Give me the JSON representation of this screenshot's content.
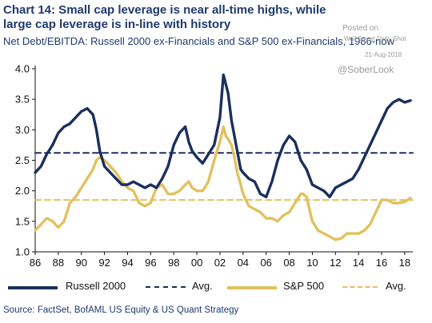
{
  "header": {
    "title": "Chart 14: Small cap leverage is near all-time highs, while large cap leverage is in-line with history",
    "subtitle": "Net Debt/EBITDA: Russell 2000 ex-Financials and S&P 500 ex-Financials, 1986-now"
  },
  "watermark": {
    "posted": "Posted on",
    "site": "Wall Street Daily Shot",
    "date": "21-Aug-2018",
    "handle": "@SoberLook"
  },
  "source": "Source: FactSet, BofAML US Equity & US Quant Strategy",
  "colors": {
    "russell": "#1b2f5e",
    "sp500": "#e2c15e",
    "axis": "#111111"
  },
  "chart_data": {
    "type": "line",
    "xlabel": "",
    "ylabel": "",
    "xlim": [
      1986,
      2018.7
    ],
    "ylim": [
      1.0,
      4.0
    ],
    "x_ticks": [
      "86",
      "88",
      "90",
      "92",
      "94",
      "96",
      "98",
      "00",
      "02",
      "04",
      "06",
      "08",
      "10",
      "12",
      "14",
      "16",
      "18"
    ],
    "y_ticks": [
      "1.0",
      "1.5",
      "2.0",
      "2.5",
      "3.0",
      "3.5",
      "4.0"
    ],
    "legend_position": "bottom",
    "series": [
      {
        "name": "Russell 2000",
        "color": "#1b2f5e",
        "style": "solid",
        "x": [
          1986.0,
          1986.5,
          1987.0,
          1987.5,
          1988.0,
          1988.5,
          1989.0,
          1989.5,
          1990.0,
          1990.5,
          1991.0,
          1991.3,
          1991.6,
          1992.0,
          1992.5,
          1993.0,
          1993.5,
          1994.0,
          1994.5,
          1995.0,
          1995.5,
          1996.0,
          1996.5,
          1997.0,
          1997.5,
          1998.0,
          1998.5,
          1999.0,
          1999.3,
          1999.6,
          2000.0,
          2000.5,
          2001.0,
          2001.5,
          2002.0,
          2002.3,
          2002.5,
          2002.7,
          2003.0,
          2003.2,
          2003.5,
          2003.8,
          2004.0,
          2004.5,
          2005.0,
          2005.5,
          2006.0,
          2006.5,
          2007.0,
          2007.5,
          2008.0,
          2008.5,
          2009.0,
          2009.5,
          2010.0,
          2010.5,
          2011.0,
          2011.5,
          2012.0,
          2012.5,
          2013.0,
          2013.5,
          2014.0,
          2014.5,
          2015.0,
          2015.5,
          2016.0,
          2016.5,
          2017.0,
          2017.5,
          2018.0,
          2018.5
        ],
        "values": [
          2.3,
          2.4,
          2.6,
          2.75,
          2.95,
          3.05,
          3.1,
          3.2,
          3.3,
          3.35,
          3.25,
          3.0,
          2.65,
          2.4,
          2.3,
          2.2,
          2.1,
          2.1,
          2.15,
          2.1,
          2.05,
          2.1,
          2.05,
          2.2,
          2.4,
          2.75,
          2.95,
          3.05,
          2.8,
          2.65,
          2.55,
          2.45,
          2.6,
          2.75,
          3.2,
          3.9,
          3.75,
          3.6,
          3.15,
          2.95,
          2.65,
          2.35,
          2.3,
          2.2,
          2.15,
          1.95,
          1.9,
          2.15,
          2.5,
          2.75,
          2.9,
          2.8,
          2.5,
          2.35,
          2.1,
          2.05,
          2.0,
          1.9,
          2.05,
          2.1,
          2.15,
          2.2,
          2.35,
          2.55,
          2.75,
          2.95,
          3.15,
          3.35,
          3.45,
          3.5,
          3.45,
          3.48
        ]
      },
      {
        "name": "S&P 500",
        "color": "#e2c15e",
        "style": "solid",
        "x": [
          1986.0,
          1986.5,
          1987.0,
          1987.5,
          1988.0,
          1988.5,
          1989.0,
          1989.5,
          1990.0,
          1990.5,
          1991.0,
          1991.3,
          1991.6,
          1992.0,
          1992.5,
          1993.0,
          1993.5,
          1994.0,
          1994.5,
          1995.0,
          1995.5,
          1996.0,
          1996.5,
          1997.0,
          1997.5,
          1998.0,
          1998.5,
          1999.0,
          1999.3,
          1999.6,
          2000.0,
          2000.5,
          2001.0,
          2001.5,
          2002.0,
          2002.3,
          2002.5,
          2002.7,
          2003.0,
          2003.2,
          2003.5,
          2003.8,
          2004.0,
          2004.5,
          2005.0,
          2005.5,
          2006.0,
          2006.5,
          2007.0,
          2007.5,
          2008.0,
          2008.5,
          2009.0,
          2009.2,
          2009.5,
          2010.0,
          2010.5,
          2011.0,
          2011.5,
          2012.0,
          2012.5,
          2013.0,
          2013.5,
          2014.0,
          2014.5,
          2015.0,
          2015.5,
          2016.0,
          2016.5,
          2017.0,
          2017.5,
          2018.0,
          2018.5
        ],
        "values": [
          1.35,
          1.45,
          1.55,
          1.5,
          1.4,
          1.5,
          1.8,
          1.9,
          2.05,
          2.2,
          2.35,
          2.5,
          2.55,
          2.5,
          2.4,
          2.3,
          2.15,
          2.05,
          2.0,
          1.8,
          1.75,
          1.8,
          2.05,
          2.1,
          1.95,
          1.95,
          2.0,
          2.1,
          2.15,
          2.05,
          2.0,
          2.0,
          2.15,
          2.5,
          2.8,
          3.05,
          2.9,
          2.85,
          2.75,
          2.6,
          2.3,
          2.1,
          1.95,
          1.75,
          1.7,
          1.65,
          1.55,
          1.55,
          1.5,
          1.6,
          1.65,
          1.8,
          1.95,
          1.95,
          1.9,
          1.5,
          1.35,
          1.3,
          1.25,
          1.2,
          1.22,
          1.3,
          1.3,
          1.3,
          1.35,
          1.45,
          1.65,
          1.85,
          1.85,
          1.8,
          1.8,
          1.82,
          1.88
        ]
      },
      {
        "name": "Avg.",
        "color": "#1b2f5e",
        "style": "dashed",
        "x": [
          1986,
          2018.7
        ],
        "values": [
          2.62,
          2.62
        ]
      },
      {
        "name": "Avg.",
        "color": "#e2c15e",
        "style": "dashed",
        "x": [
          1986,
          2018.7
        ],
        "values": [
          1.85,
          1.85
        ]
      }
    ]
  }
}
